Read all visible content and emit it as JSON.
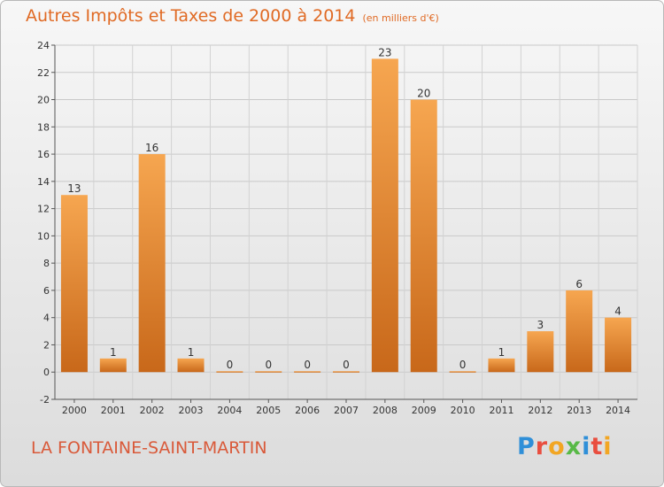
{
  "header": {
    "title": "Autres Impôts et Taxes de 2000 à 2014",
    "unit": "(en milliers d'€)"
  },
  "footer": {
    "town": "LA FONTAINE-SAINT-MARTIN",
    "logo_letters": [
      "P",
      "r",
      "o",
      "x",
      "i",
      "t",
      "i"
    ],
    "logo_colors": [
      "#2f8fd8",
      "#e94e3f",
      "#f2a623",
      "#58b947",
      "#2f8fd8",
      "#e94e3f",
      "#f2a623"
    ]
  },
  "colors": {
    "bar_light": "#f6a650",
    "bar_dark": "#c8681a",
    "title": "#e06a24",
    "town": "#d95a3a"
  },
  "chart_data": {
    "type": "bar",
    "categories": [
      "2000",
      "2001",
      "2002",
      "2003",
      "2004",
      "2005",
      "2006",
      "2007",
      "2008",
      "2009",
      "2010",
      "2011",
      "2012",
      "2013",
      "2014"
    ],
    "values": [
      13,
      1,
      16,
      1,
      0,
      0,
      0,
      0,
      23,
      20,
      0,
      1,
      3,
      6,
      4
    ],
    "data_labels": [
      "13",
      "1",
      "16",
      "1",
      "0",
      "0",
      "0",
      "0",
      "23",
      "20",
      "0",
      "1",
      "3",
      "6",
      "4"
    ],
    "ylim": [
      -2,
      24
    ],
    "yticks": [
      -2,
      0,
      2,
      4,
      6,
      8,
      10,
      12,
      14,
      16,
      18,
      20,
      22,
      24
    ],
    "ytick_labels": [
      "-2",
      "0",
      "2",
      "4",
      "6",
      "8",
      "10",
      "12",
      "14",
      "16",
      "18",
      "20",
      "22",
      "24"
    ],
    "grid": true,
    "legend": "none"
  }
}
